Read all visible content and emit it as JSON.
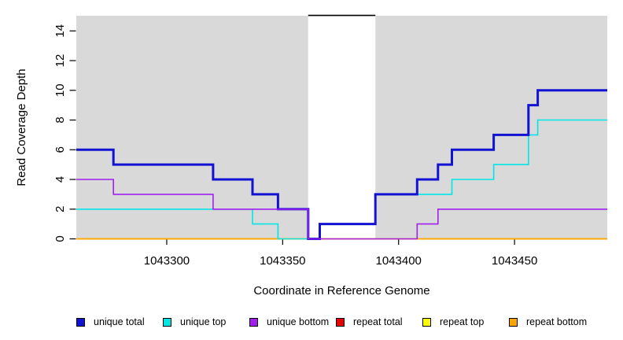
{
  "chart_data": {
    "type": "line",
    "subtype": "step",
    "title": "",
    "xlabel": "Coordinate in Reference Genome",
    "ylabel": "Read Coverage Depth",
    "xlim": [
      1043261,
      1043490
    ],
    "ylim": [
      0,
      15
    ],
    "xticks": [
      "1043300",
      "1043350",
      "1043400",
      "1043450"
    ],
    "xtick_values": [
      1043300,
      1043350,
      1043400,
      1043450
    ],
    "yticks": [
      "0",
      "2",
      "4",
      "6",
      "8",
      "10",
      "12",
      "14"
    ],
    "ytick_values": [
      0,
      2,
      4,
      6,
      8,
      10,
      12,
      14
    ],
    "grid": false,
    "panel_background": "#d9d9d9",
    "highlight_region": {
      "x_start": 1043361,
      "x_end": 1043390,
      "fill": "#ffffff",
      "top_value": 15,
      "top_border_color": "#000000"
    },
    "series": [
      {
        "name": "unique total",
        "color": "#1212d2",
        "line_width": 3,
        "z": 5,
        "points": [
          [
            1043261,
            6
          ],
          [
            1043277,
            5
          ],
          [
            1043320,
            4
          ],
          [
            1043337,
            3
          ],
          [
            1043348,
            2
          ],
          [
            1043361,
            0
          ],
          [
            1043366,
            1
          ],
          [
            1043390,
            3
          ],
          [
            1043408,
            4
          ],
          [
            1043417,
            5
          ],
          [
            1043423,
            6
          ],
          [
            1043441,
            7
          ],
          [
            1043456,
            9
          ],
          [
            1043460,
            10
          ],
          [
            1043490,
            10
          ]
        ]
      },
      {
        "name": "unique top",
        "color": "#00e6e6",
        "line_width": 1.6,
        "z": 4,
        "points": [
          [
            1043261,
            2
          ],
          [
            1043337,
            1
          ],
          [
            1043348,
            0
          ],
          [
            1043366,
            1
          ],
          [
            1043390,
            3
          ],
          [
            1043423,
            4
          ],
          [
            1043441,
            5
          ],
          [
            1043456,
            7
          ],
          [
            1043460,
            8
          ],
          [
            1043490,
            8
          ]
        ]
      },
      {
        "name": "unique bottom",
        "color": "#a020f0",
        "line_width": 1.6,
        "z": 6,
        "points": [
          [
            1043261,
            4
          ],
          [
            1043277,
            3
          ],
          [
            1043320,
            2
          ],
          [
            1043361,
            0
          ],
          [
            1043408,
            1
          ],
          [
            1043417,
            2
          ],
          [
            1043490,
            2
          ]
        ]
      },
      {
        "name": "repeat total",
        "color": "#e60000",
        "line_width": 1.6,
        "z": 1,
        "points": [
          [
            1043261,
            0
          ],
          [
            1043490,
            0
          ]
        ]
      },
      {
        "name": "repeat top",
        "color": "#ffff00",
        "line_width": 1.6,
        "z": 2,
        "points": [
          [
            1043261,
            0
          ],
          [
            1043490,
            0
          ]
        ]
      },
      {
        "name": "repeat bottom",
        "color": "#ffa500",
        "line_width": 1.6,
        "z": 3,
        "points": [
          [
            1043261,
            0
          ],
          [
            1043490,
            0
          ]
        ]
      }
    ],
    "legend": {
      "position": "bottom",
      "entries": [
        {
          "label": "unique total",
          "color": "#1212d2"
        },
        {
          "label": "unique top",
          "color": "#00e6e6"
        },
        {
          "label": "unique bottom",
          "color": "#a020f0"
        },
        {
          "label": "repeat total",
          "color": "#e60000"
        },
        {
          "label": "repeat top",
          "color": "#ffff00"
        },
        {
          "label": "repeat bottom",
          "color": "#ffa500"
        }
      ]
    }
  }
}
